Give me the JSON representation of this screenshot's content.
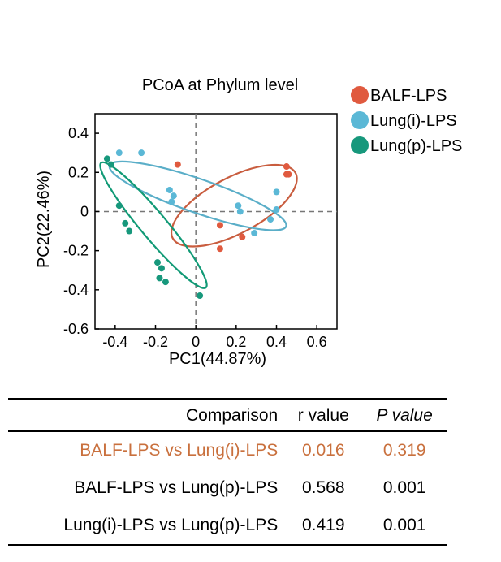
{
  "chart_data": {
    "type": "scatter",
    "title": "PCoA at Phylum level",
    "xlabel": "PC1(44.87%)",
    "ylabel": "PC2(22.46%)",
    "xlim": [
      -0.5,
      0.7
    ],
    "ylim": [
      -0.6,
      0.5
    ],
    "xticks": [
      -0.4,
      -0.2,
      0,
      0.2,
      0.4,
      0.6
    ],
    "xtick_labels": [
      "-0.4",
      "-0.2",
      "0",
      "0.2",
      "0.4",
      "0.6"
    ],
    "yticks": [
      0.4,
      0.2,
      0,
      -0.2,
      -0.4,
      -0.6
    ],
    "ytick_labels": [
      "0.4",
      "0.2",
      "0",
      "-0.2",
      "-0.4",
      "-0.6"
    ],
    "reference_lines": {
      "x": 0,
      "y": 0,
      "style": "dashed"
    },
    "grid": false,
    "legend_position": "top-right",
    "series": [
      {
        "name": "BALF-LPS",
        "color": "#e05a3f",
        "ellipse_color": "#c95d3f",
        "points": [
          [
            -0.09,
            0.24
          ],
          [
            0.45,
            0.23
          ],
          [
            0.45,
            0.19
          ],
          [
            0.46,
            0.19
          ],
          [
            0.12,
            -0.07
          ],
          [
            0.23,
            -0.13
          ],
          [
            0.12,
            -0.19
          ]
        ],
        "ellipse": {
          "cx": 0.19,
          "cy": 0.03,
          "rx": 0.35,
          "ry": 0.14,
          "angle_deg": 28
        }
      },
      {
        "name": "Lung(i)-LPS",
        "color": "#5bb8d6",
        "ellipse_color": "#5aaec8",
        "points": [
          [
            -0.38,
            0.3
          ],
          [
            -0.27,
            0.3
          ],
          [
            -0.13,
            0.11
          ],
          [
            -0.11,
            0.08
          ],
          [
            -0.12,
            0.05
          ],
          [
            0.21,
            0.03
          ],
          [
            0.22,
            0.0
          ],
          [
            0.29,
            -0.11
          ],
          [
            0.37,
            -0.04
          ],
          [
            0.4,
            0.01
          ],
          [
            0.4,
            0.1
          ]
        ],
        "ellipse": {
          "cx": 0.01,
          "cy": 0.08,
          "rx": 0.47,
          "ry": 0.085,
          "angle_deg": -19
        }
      },
      {
        "name": "Lung(p)-LPS",
        "color": "#17987c",
        "ellipse_color": "#119a76",
        "points": [
          [
            -0.44,
            0.27
          ],
          [
            -0.42,
            0.24
          ],
          [
            -0.38,
            0.03
          ],
          [
            -0.35,
            -0.06
          ],
          [
            -0.33,
            -0.1
          ],
          [
            -0.19,
            -0.26
          ],
          [
            -0.17,
            -0.29
          ],
          [
            -0.18,
            -0.34
          ],
          [
            -0.15,
            -0.36
          ],
          [
            0.02,
            -0.43
          ]
        ],
        "ellipse": {
          "cx": -0.21,
          "cy": -0.07,
          "rx": 0.41,
          "ry": 0.065,
          "angle_deg": -50
        }
      }
    ]
  },
  "table": {
    "headers": {
      "comparison": "Comparison",
      "r_value": "r value",
      "p_value": "P value"
    },
    "highlight_color": "#c9703d",
    "rows": [
      {
        "comparison": "BALF-LPS vs Lung(i)-LPS",
        "r": "0.016",
        "p": "0.319",
        "highlight": true
      },
      {
        "comparison": "BALF-LPS vs Lung(p)-LPS",
        "r": "0.568",
        "p": "0.001",
        "highlight": false
      },
      {
        "comparison": "Lung(i)-LPS vs Lung(p)-LPS",
        "r": "0.419",
        "p": "0.001",
        "highlight": false
      }
    ]
  }
}
